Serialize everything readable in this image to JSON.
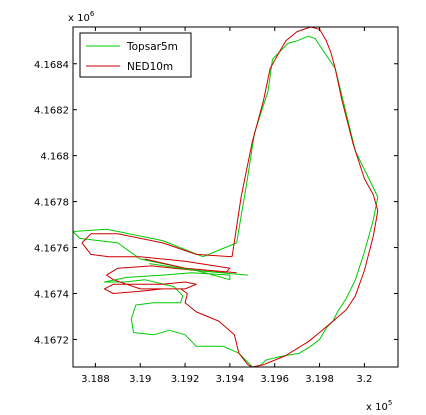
{
  "chart_data": {
    "type": "line",
    "title": "",
    "xlabel": "",
    "ylabel": "",
    "xlim": [
      318700,
      320150
    ],
    "ylim": [
      4167080,
      4168560
    ],
    "x_multiplier_label": {
      "base": "x 10",
      "exponent": "5"
    },
    "y_multiplier_label": {
      "base": "x 10",
      "exponent": "6"
    },
    "x_ticks": [
      318800,
      319000,
      319200,
      319400,
      319600,
      319800,
      320000
    ],
    "x_tick_labels": [
      "3.188",
      "3.19",
      "3.192",
      "3.194",
      "3.196",
      "3.198",
      "3.2"
    ],
    "y_ticks": [
      4167200,
      4167400,
      4167600,
      4167800,
      4168000,
      4168200,
      4168400
    ],
    "y_tick_labels": [
      "4.1672",
      "4.1674",
      "4.1676",
      "4.1678",
      "4.168",
      "4.1682",
      "4.1684"
    ],
    "grid": false,
    "legend_position": "top-left",
    "series": [
      {
        "name": "Topsar5m",
        "color": "#00cc00",
        "x": [
          319430,
          319475,
          319510,
          319570,
          319590,
          319630,
          319660,
          319700,
          319750,
          319780,
          319800,
          319870,
          319910,
          319960,
          320020,
          320060,
          320040,
          320000,
          319960,
          319920,
          319880,
          319860,
          319830,
          319800,
          319760,
          319710,
          319650,
          319600,
          319560,
          319540,
          319510,
          319500,
          319440,
          319370,
          319250,
          319200,
          319130,
          319060,
          318970,
          318960,
          318980,
          319060,
          319180,
          319190,
          319150,
          319020,
          318930,
          318840,
          318940,
          319100,
          319230,
          319400,
          319400,
          319250,
          319000,
          318900,
          318730,
          318700,
          318850,
          319100,
          319280,
          319430
        ],
        "y": [
          4167620,
          4167880,
          4168100,
          4168280,
          4168420,
          4168460,
          4168490,
          4168500,
          4168520,
          4168510,
          4168480,
          4168380,
          4168220,
          4168020,
          4167900,
          4167820,
          4167720,
          4167580,
          4167460,
          4167380,
          4167320,
          4167280,
          4167250,
          4167200,
          4167170,
          4167140,
          4167130,
          4167120,
          4167110,
          4167090,
          4167080,
          4167080,
          4167140,
          4167170,
          4167170,
          4167220,
          4167240,
          4167220,
          4167230,
          4167290,
          4167350,
          4167360,
          4167360,
          4167390,
          4167430,
          4167460,
          4167450,
          4167450,
          4167470,
          4167480,
          4167490,
          4167480,
          4167460,
          4167500,
          4167550,
          4167620,
          4167640,
          4167670,
          4167680,
          4167630,
          4167560,
          4167620
        ]
      },
      {
        "name": "NED10m",
        "color": "#cc0000",
        "x": [
          319410,
          319450,
          319500,
          319550,
          319580,
          319620,
          319650,
          319700,
          319760,
          319800,
          319830,
          319850,
          319870,
          319900,
          319950,
          320000,
          320040,
          320060,
          320040,
          320000,
          319960,
          319920,
          319860,
          319800,
          319750,
          319700,
          319650,
          319600,
          319550,
          319500,
          319480,
          319440,
          319420,
          319350,
          319250,
          319200,
          319210,
          319180,
          319100,
          319000,
          318880,
          318840,
          318880,
          318960,
          319100,
          319200,
          319250,
          319200,
          319000,
          318880,
          318850,
          318900,
          319050,
          319250,
          319380,
          319400,
          319200,
          319000,
          318860,
          318780,
          318740,
          318780,
          318900,
          319100,
          319250,
          319410
        ],
        "y": [
          4167560,
          4167820,
          4168060,
          4168240,
          4168380,
          4168450,
          4168500,
          4168540,
          4168560,
          4168550,
          4168500,
          4168450,
          4168380,
          4168240,
          4168050,
          4167900,
          4167830,
          4167760,
          4167650,
          4167500,
          4167390,
          4167330,
          4167280,
          4167230,
          4167190,
          4167160,
          4167130,
          4167110,
          4167090,
          4167080,
          4167090,
          4167140,
          4167220,
          4167280,
          4167320,
          4167360,
          4167400,
          4167420,
          4167420,
          4167410,
          4167400,
          4167420,
          4167440,
          4167440,
          4167440,
          4167450,
          4167440,
          4167420,
          4167420,
          4167460,
          4167480,
          4167510,
          4167520,
          4167500,
          4167490,
          4167510,
          4167540,
          4167560,
          4167560,
          4167570,
          4167620,
          4167660,
          4167660,
          4167620,
          4167570,
          4167560
        ]
      },
      {
        "name": "",
        "color": "#cc0000",
        "x": [
          319020,
          319200,
          319430
        ],
        "y": [
          4167550,
          4167510,
          4167490
        ]
      },
      {
        "name": "",
        "color": "#00cc00",
        "x": [
          319040,
          319250,
          319480
        ],
        "y": [
          4167530,
          4167500,
          4167480
        ]
      }
    ]
  }
}
